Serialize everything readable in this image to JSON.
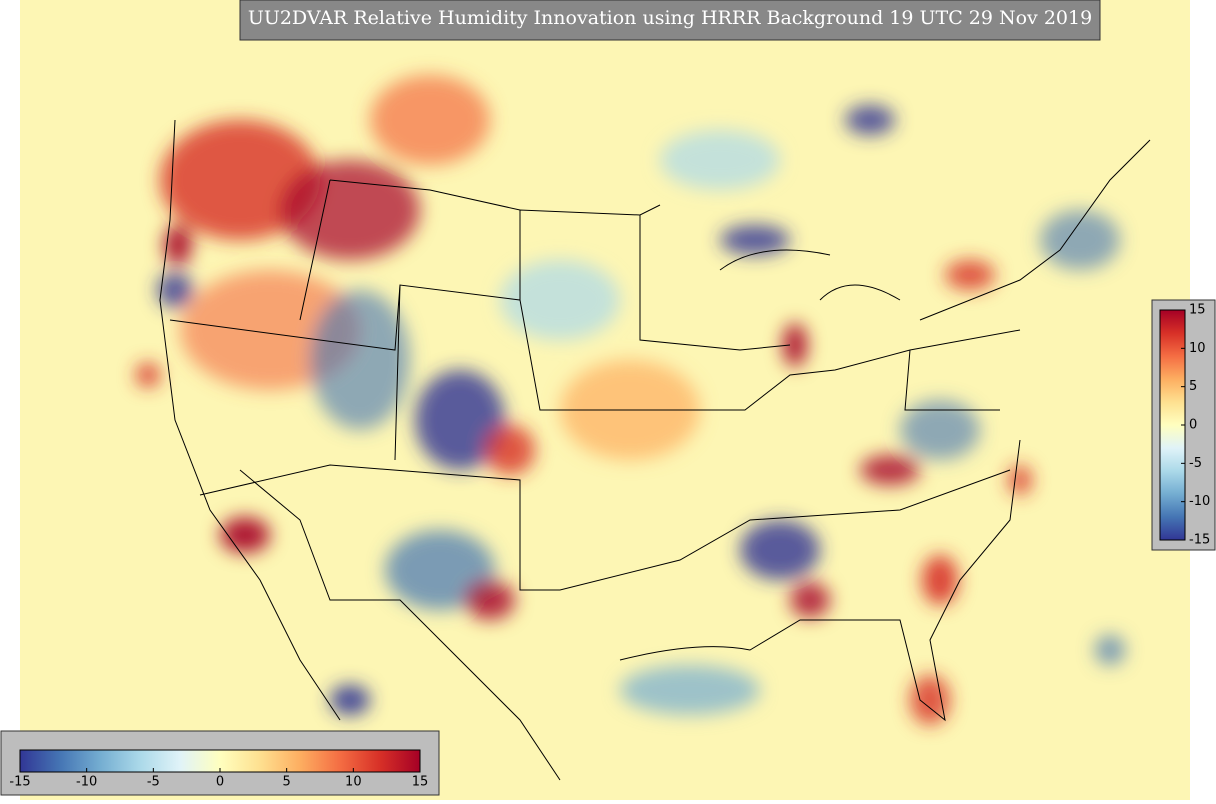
{
  "title": "UU2DVAR Relative Humidity Innovation using HRRR Background 19 UTC 29 Nov 2019",
  "colormap": [
    "#313695",
    "#4575b4",
    "#74add1",
    "#abd9e9",
    "#e0f3f8",
    "#ffffbf",
    "#fee090",
    "#fdae61",
    "#f46d43",
    "#d73027",
    "#a50026"
  ],
  "colorbars": [
    {
      "orientation": "horizontal",
      "lim": [
        -15,
        15
      ],
      "ticks": [
        -15,
        -10,
        -5,
        0,
        5,
        10,
        15
      ]
    },
    {
      "orientation": "vertical",
      "lim": [
        -15,
        15
      ],
      "ticks": [
        15,
        10,
        5,
        0,
        -5,
        -10,
        -15
      ]
    }
  ]
}
